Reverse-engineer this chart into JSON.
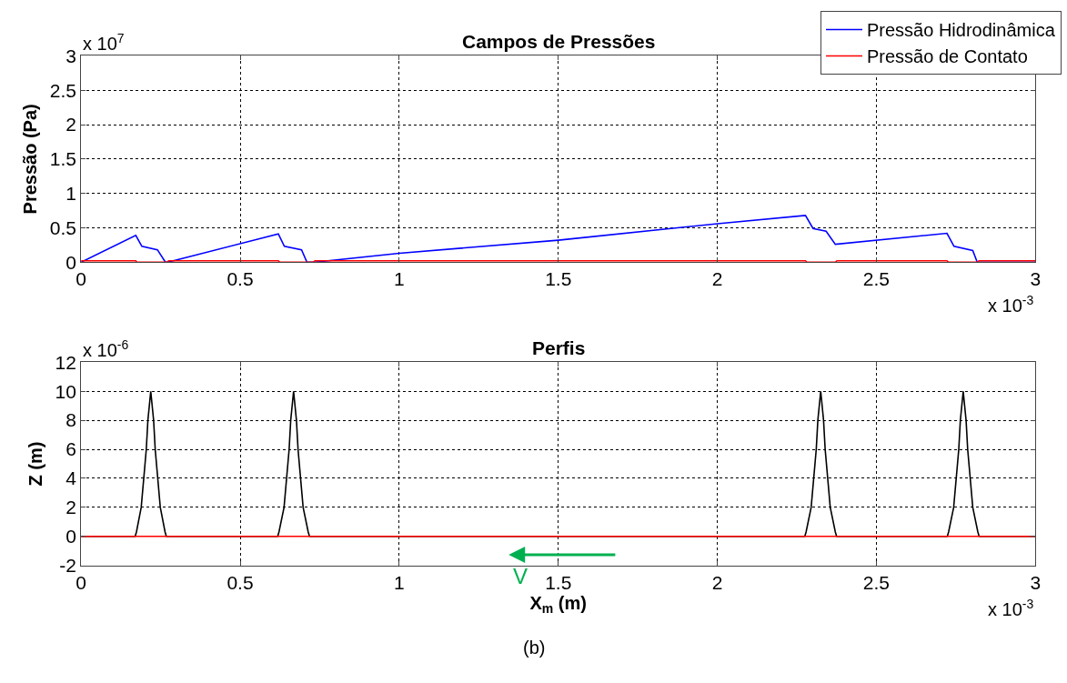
{
  "chart_data": [
    {
      "type": "line",
      "title": "Campos de Pressões",
      "ylabel": "Pressão (Pa)",
      "xlim": [
        0,
        3
      ],
      "xticks": [
        0,
        0.5,
        1,
        1.5,
        2,
        2.5,
        3
      ],
      "ylim": [
        0,
        3
      ],
      "yticks": [
        0,
        0.5,
        1,
        1.5,
        2,
        2.5,
        3
      ],
      "grid": true,
      "legend": "top right",
      "marker": "none",
      "line_style": "solid",
      "annotations": [
        "x 10$^{7}$",
        "x 10$^{-3}$"
      ],
      "series": [
        {
          "name": "Pressão Hidrodinâmica",
          "color": "#0000ff",
          "x": [
            0,
            0.172,
            0.191,
            0.24,
            0.265,
            0.273,
            0.62,
            0.639,
            0.693,
            0.71,
            0.735,
            1,
            1.5,
            2,
            2.277,
            2.301,
            2.342,
            2.371,
            2.722,
            2.744,
            2.803,
            2.817,
            3
          ],
          "values": [
            0,
            0.39,
            0.23,
            0.18,
            0,
            0,
            0.41,
            0.23,
            0.18,
            0,
            0,
            0.13,
            0.32,
            0.56,
            0.68,
            0.49,
            0.45,
            0.26,
            0.42,
            0.23,
            0.17,
            0,
            0
          ]
        },
        {
          "name": "Pressão de Contato",
          "color": "#ff0000",
          "x": [
            0,
            0.172,
            0.175,
            0.27,
            0.275,
            0.62,
            0.625,
            0.73,
            0.735,
            2.277,
            2.282,
            2.371,
            2.376,
            2.722,
            2.727,
            2.817,
            2.822,
            3
          ],
          "values": [
            0.02,
            0.02,
            0,
            0,
            0.02,
            0.02,
            0,
            0,
            0.02,
            0.02,
            0,
            0,
            0.02,
            0.02,
            0,
            0,
            0.02,
            0.02
          ]
        }
      ]
    },
    {
      "type": "line",
      "title": "Perfis",
      "xlabel": "X$_{m}$ (m)",
      "ylabel": "Z (m)",
      "xlim": [
        0,
        3
      ],
      "xticks": [
        0,
        0.5,
        1,
        1.5,
        2,
        2.5,
        3
      ],
      "ylim": [
        -2,
        12
      ],
      "yticks": [
        -2,
        0,
        2,
        4,
        6,
        8,
        10,
        12
      ],
      "grid": true,
      "marker": "none",
      "line_style": "solid",
      "annotations": [
        "x 10$^{-6}$",
        "x 10$^{-3}$",
        "V",
        "(b)"
      ],
      "series": [
        {
          "color": "#000000",
          "x": [
            0,
            0.17,
            0.174,
            0.189,
            0.205,
            0.21,
            0.219,
            0.228,
            0.233,
            0.249,
            0.264,
            0.268,
            0.618,
            0.622,
            0.638,
            0.654,
            0.659,
            0.668,
            0.677,
            0.682,
            0.698,
            0.714,
            0.718,
            2.275,
            2.279,
            2.295,
            2.311,
            2.316,
            2.325,
            2.334,
            2.339,
            2.355,
            2.371,
            2.375,
            2.723,
            2.727,
            2.743,
            2.759,
            2.764,
            2.773,
            2.782,
            2.787,
            2.803,
            2.819,
            2.823,
            3
          ],
          "values": [
            0,
            0,
            0.3,
            2,
            6,
            8,
            10,
            8,
            6,
            2,
            0.3,
            0,
            0,
            0.3,
            2,
            6,
            8,
            10,
            8,
            6,
            2,
            0.3,
            0,
            0,
            0.3,
            2,
            6,
            8,
            10,
            8,
            6,
            2,
            0.3,
            0,
            0,
            0.3,
            2,
            6,
            8,
            10,
            8,
            6,
            2,
            0.3,
            0,
            0
          ]
        },
        {
          "color": "#ff0000",
          "x": [
            0,
            3
          ],
          "values": [
            0,
            0
          ]
        }
      ]
    }
  ]
}
